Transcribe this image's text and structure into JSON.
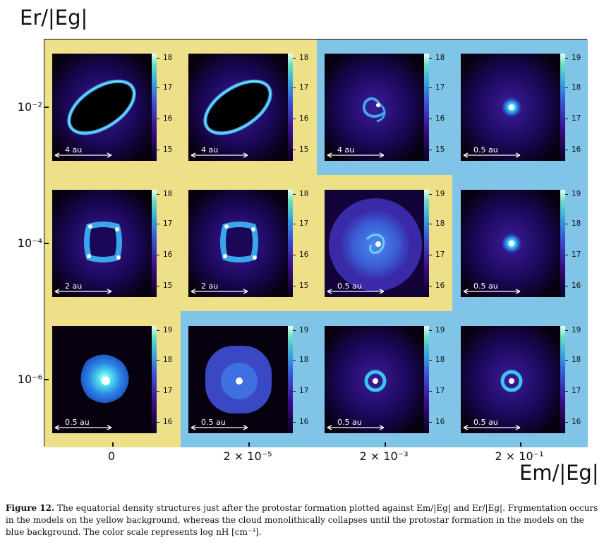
{
  "figure": {
    "ylabel": "Er/|Eg|",
    "xlabel": "Em/|Eg|",
    "yticks": [
      "10⁻²",
      "10⁻⁴",
      "10⁻⁶"
    ],
    "xticks": [
      "0",
      "2 × 10⁻⁵",
      "2 × 10⁻³",
      "2 × 10⁻¹"
    ],
    "colors": {
      "fragmentation_background": "#ede089",
      "monolithic_background": "#80c4e7",
      "colormap_low": "#0b0020",
      "colormap_high": "#e8fff4"
    },
    "rows": [
      {
        "panels": [
          {
            "morphology": "ring",
            "region": "fragmentation",
            "scale": "4 au",
            "cticks": [
              "18",
              "17",
              "16",
              "15"
            ]
          },
          {
            "morphology": "ring",
            "region": "fragmentation",
            "scale": "4 au",
            "cticks": [
              "18",
              "17",
              "16",
              "15"
            ]
          },
          {
            "morphology": "spiral",
            "region": "monolithic",
            "scale": "4 au",
            "cticks": [
              "18",
              "17",
              "16",
              "15"
            ]
          },
          {
            "morphology": "point",
            "region": "monolithic",
            "scale": "0.5 au",
            "cticks": [
              "19",
              "18",
              "17",
              "16"
            ]
          }
        ]
      },
      {
        "panels": [
          {
            "morphology": "square-ring",
            "region": "fragmentation",
            "scale": "2 au",
            "cticks": [
              "18",
              "17",
              "16",
              "15"
            ]
          },
          {
            "morphology": "square-ring",
            "region": "fragmentation",
            "scale": "2 au",
            "cticks": [
              "18",
              "17",
              "16",
              "15"
            ]
          },
          {
            "morphology": "turbulent-disk",
            "region": "fragmentation",
            "scale": "0.5 au",
            "cticks": [
              "19",
              "18",
              "17",
              "16"
            ]
          },
          {
            "morphology": "point",
            "region": "monolithic",
            "scale": "0.5 au",
            "cticks": [
              "19",
              "18",
              "17",
              "16"
            ]
          }
        ]
      },
      {
        "panels": [
          {
            "morphology": "bright-blob",
            "region": "fragmentation",
            "scale": "0.5 au",
            "cticks": [
              "19",
              "18",
              "17",
              "16"
            ]
          },
          {
            "morphology": "diffuse-disk",
            "region": "monolithic",
            "scale": "0.5 au",
            "cticks": [
              "19",
              "18",
              "17",
              "16"
            ]
          },
          {
            "morphology": "point-halo",
            "region": "monolithic",
            "scale": "0.5 au",
            "cticks": [
              "19",
              "18",
              "17",
              "16"
            ]
          },
          {
            "morphology": "point-halo",
            "region": "monolithic",
            "scale": "0.5 au",
            "cticks": [
              "19",
              "18",
              "17",
              "16"
            ]
          }
        ]
      }
    ]
  },
  "caption": {
    "label": "Figure 12.",
    "text": "The equatorial density structures just after the protostar formation plotted against Em/|Eg| and Er/|Eg|. Frgmentation occurs in the models on the yellow background, whereas the cloud monolithically collapses until the protostar formation in the models on the blue background. The color scale represents log nH [cm⁻³]."
  }
}
